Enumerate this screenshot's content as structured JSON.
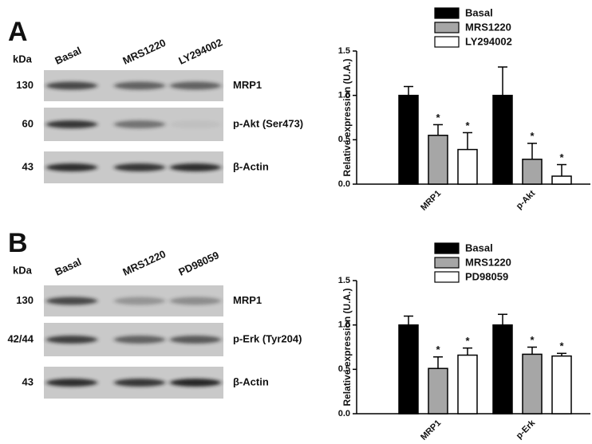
{
  "panels": [
    {
      "label": "A",
      "kda": "kDa",
      "lanes": [
        "Basal",
        "MRS1220",
        "LY294002"
      ],
      "rows": [
        {
          "size": "130",
          "name": "MRP1"
        },
        {
          "size": "60",
          "name": "p-Akt (Ser473)"
        },
        {
          "size": "43",
          "name": "β-Actin"
        }
      ]
    },
    {
      "label": "B",
      "kda": "kDa",
      "lanes": [
        "Basal",
        "MRS1220",
        "PD98059"
      ],
      "rows": [
        {
          "size": "130",
          "name": "MRP1"
        },
        {
          "size": "42/44",
          "name": "p-Erk (Tyr204)"
        },
        {
          "size": "43",
          "name": "β-Actin"
        }
      ]
    }
  ],
  "chart_data": [
    {
      "type": "bar",
      "y_label": "Relative expression (U.A.)",
      "categories": [
        "MRP1",
        "p-Akt"
      ],
      "ylim": [
        0,
        1.5
      ],
      "yticks": [
        {
          "value": 0,
          "label": "0.0"
        },
        {
          "value": 0.5,
          "label": "0.5"
        },
        {
          "value": 1,
          "label": "1.0"
        },
        {
          "value": 1.5,
          "label": "1.5"
        }
      ],
      "series": [
        {
          "name": "Basal",
          "color": "#000000",
          "values": [
            1.0,
            1.0
          ],
          "errors": [
            0.1,
            0.32
          ]
        },
        {
          "name": "MRS1220",
          "color": "#a6a6a6",
          "values": [
            0.55,
            0.28
          ],
          "errors": [
            0.12,
            0.18
          ],
          "annotations": [
            "*",
            "*"
          ]
        },
        {
          "name": "LY294002",
          "color": "#ffffff",
          "values": [
            0.39,
            0.09
          ],
          "errors": [
            0.19,
            0.13
          ],
          "annotations": [
            "*",
            "*"
          ]
        }
      ]
    },
    {
      "type": "bar",
      "y_label": "Relative expression (U.A.)",
      "categories": [
        "MRP1",
        "p-Erk"
      ],
      "ylim": [
        0,
        1.5
      ],
      "yticks": [
        {
          "value": 0,
          "label": "0.0"
        },
        {
          "value": 0.5,
          "label": "0.5"
        },
        {
          "value": 1,
          "label": "1.0"
        },
        {
          "value": 1.5,
          "label": "1.5"
        }
      ],
      "series": [
        {
          "name": "Basal",
          "color": "#000000",
          "values": [
            1.0,
            1.0
          ],
          "errors": [
            0.1,
            0.12
          ]
        },
        {
          "name": "MRS1220",
          "color": "#a6a6a6",
          "values": [
            0.51,
            0.67
          ],
          "errors": [
            0.13,
            0.08
          ],
          "annotations": [
            "*",
            "*"
          ]
        },
        {
          "name": "PD98059",
          "color": "#ffffff",
          "values": [
            0.66,
            0.65
          ],
          "errors": [
            0.08,
            0.03
          ],
          "annotations": [
            "*",
            "*"
          ]
        }
      ]
    }
  ]
}
